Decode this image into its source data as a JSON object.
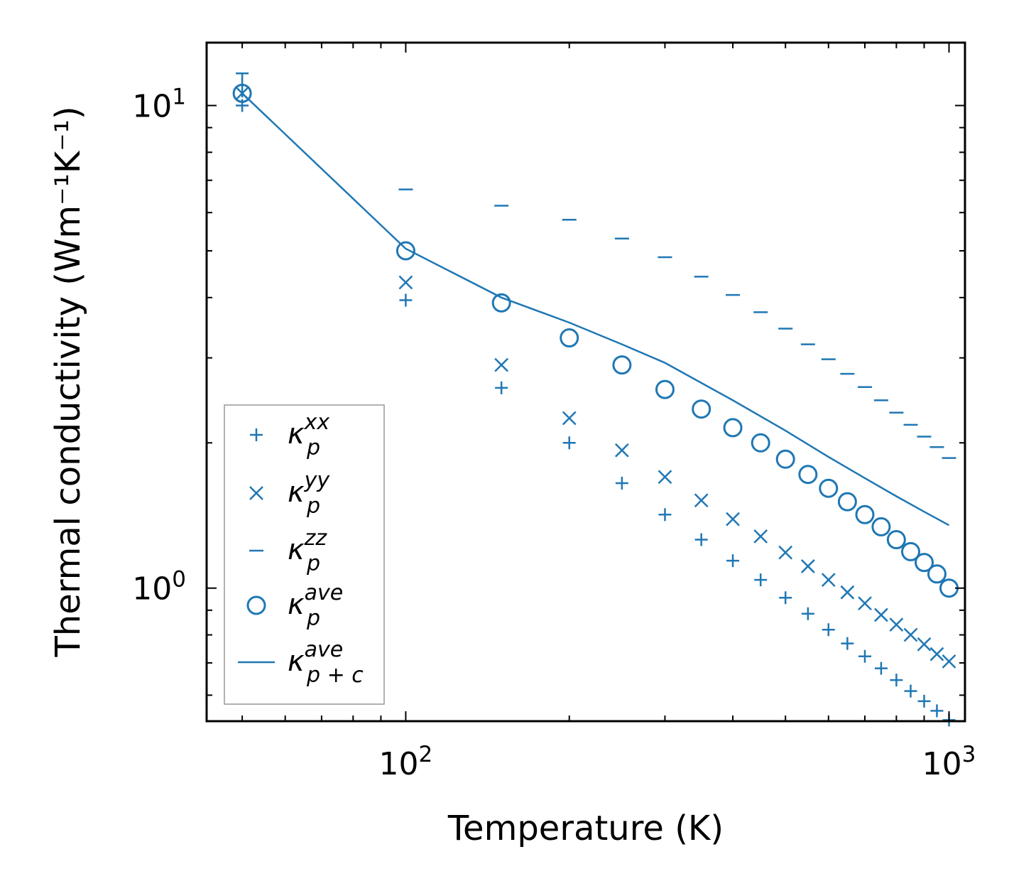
{
  "colors": {
    "series": "#1f77b4",
    "axis": "#000000",
    "legend_border": "#999999"
  },
  "chart_data": {
    "type": "scatter",
    "xscale": "log",
    "yscale": "log",
    "xlabel": "Temperature (K)",
    "ylabel": "Thermal conductivity (Wm⁻¹K⁻¹)",
    "xlim": [
      43,
      1070
    ],
    "ylim": [
      0.53,
      13.5
    ],
    "xticks": [
      {
        "value": 100,
        "base": "10",
        "exp": "2"
      },
      {
        "value": 1000,
        "base": "10",
        "exp": "3"
      }
    ],
    "yticks": [
      {
        "value": 1,
        "base": "10",
        "exp": "0"
      },
      {
        "value": 10,
        "base": "10",
        "exp": "1"
      }
    ],
    "legend_position": "lower-left",
    "series": [
      {
        "name": "kxx",
        "marker": "plus",
        "legend_symbol": "κ",
        "legend_sub": "p",
        "legend_sup": "xx",
        "x": [
          50,
          100,
          150,
          200,
          250,
          300,
          350,
          400,
          450,
          500,
          550,
          600,
          650,
          700,
          750,
          800,
          850,
          900,
          950,
          1000
        ],
        "y": [
          10.0,
          3.95,
          2.6,
          2.0,
          1.65,
          1.42,
          1.26,
          1.14,
          1.04,
          0.955,
          0.885,
          0.82,
          0.768,
          0.722,
          0.682,
          0.645,
          0.612,
          0.583,
          0.557,
          0.533
        ]
      },
      {
        "name": "kyy",
        "marker": "x",
        "legend_symbol": "κ",
        "legend_sub": "p",
        "legend_sup": "yy",
        "x": [
          50,
          100,
          150,
          200,
          250,
          300,
          350,
          400,
          450,
          500,
          550,
          600,
          650,
          700,
          750,
          800,
          850,
          900,
          950,
          1000
        ],
        "y": [
          10.6,
          4.3,
          2.9,
          2.25,
          1.93,
          1.7,
          1.52,
          1.39,
          1.28,
          1.185,
          1.11,
          1.04,
          0.98,
          0.93,
          0.88,
          0.84,
          0.8,
          0.765,
          0.73,
          0.705
        ]
      },
      {
        "name": "kzz",
        "marker": "hline",
        "legend_symbol": "κ",
        "legend_sub": "p",
        "legend_sup": "zz",
        "x": [
          100,
          150,
          200,
          250,
          300,
          350,
          400,
          450,
          500,
          550,
          600,
          650,
          700,
          750,
          800,
          850,
          900,
          950,
          1000
        ],
        "y": [
          6.7,
          6.2,
          5.8,
          5.3,
          4.85,
          4.42,
          4.05,
          3.73,
          3.45,
          3.2,
          2.98,
          2.78,
          2.61,
          2.45,
          2.31,
          2.18,
          2.06,
          1.96,
          1.86
        ]
      },
      {
        "name": "kave",
        "marker": "circle",
        "legend_symbol": "κ",
        "legend_sub": "p",
        "legend_sup": "ave",
        "x": [
          50,
          100,
          150,
          200,
          250,
          300,
          350,
          400,
          450,
          500,
          550,
          600,
          650,
          700,
          750,
          800,
          850,
          900,
          950,
          1000
        ],
        "y": [
          10.6,
          5.0,
          3.9,
          3.3,
          2.9,
          2.58,
          2.35,
          2.15,
          2.0,
          1.85,
          1.72,
          1.61,
          1.51,
          1.42,
          1.34,
          1.26,
          1.19,
          1.13,
          1.07,
          1.0
        ]
      },
      {
        "name": "kpc",
        "marker": "line",
        "legend_symbol": "κ",
        "legend_sub": "p + c",
        "legend_sup": "ave",
        "x": [
          50,
          100,
          150,
          200,
          250,
          300,
          400,
          500,
          600,
          700,
          800,
          900,
          1000
        ],
        "y": [
          10.6,
          5.05,
          4.0,
          3.55,
          3.2,
          2.93,
          2.45,
          2.12,
          1.87,
          1.69,
          1.55,
          1.44,
          1.35
        ]
      }
    ]
  }
}
